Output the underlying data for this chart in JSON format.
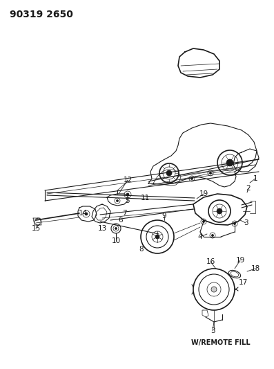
{
  "title_code": "90319 2650",
  "bg_color": "#ffffff",
  "line_color": "#1a1a1a",
  "label_color": "#1a1a1a",
  "title_fontsize": 10,
  "label_fontsize": 7.5,
  "caption": "W/REMOTE FILL",
  "caption_fontsize": 7,
  "fig_width": 3.97,
  "fig_height": 5.33,
  "dpi": 100
}
